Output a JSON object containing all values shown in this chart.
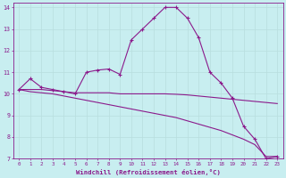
{
  "xlabel": "Windchill (Refroidissement éolien,°C)",
  "bg_color": "#c8eef0",
  "line_color": "#8b1a8b",
  "grid_color": "#b8dede",
  "xlim": [
    -0.5,
    23.5
  ],
  "ylim": [
    7,
    14.2
  ],
  "yticks": [
    7,
    8,
    9,
    10,
    11,
    12,
    13,
    14
  ],
  "xticks": [
    0,
    1,
    2,
    3,
    4,
    5,
    6,
    7,
    8,
    9,
    10,
    11,
    12,
    13,
    14,
    15,
    16,
    17,
    18,
    19,
    20,
    21,
    22,
    23
  ],
  "line1_x": [
    0,
    1,
    2,
    3,
    4,
    5,
    6,
    7,
    8,
    9,
    10,
    11,
    12,
    13,
    14,
    15,
    16,
    17,
    18,
    19,
    20,
    21,
    22,
    23
  ],
  "line1_y": [
    10.2,
    10.7,
    10.3,
    10.2,
    10.1,
    10.0,
    11.0,
    11.1,
    11.15,
    10.9,
    12.5,
    13.0,
    13.5,
    14.0,
    14.0,
    13.5,
    12.6,
    11.0,
    10.5,
    9.8,
    8.5,
    7.9,
    7.0,
    7.1
  ],
  "line2_x": [
    0,
    1,
    2,
    3,
    4,
    5,
    6,
    7,
    8,
    9,
    10,
    11,
    12,
    13,
    14,
    15,
    16,
    17,
    18,
    19,
    20,
    21,
    22,
    23
  ],
  "line2_y": [
    10.2,
    10.2,
    10.2,
    10.15,
    10.1,
    10.05,
    10.05,
    10.05,
    10.05,
    10.0,
    10.0,
    10.0,
    10.0,
    10.0,
    9.98,
    9.95,
    9.9,
    9.85,
    9.8,
    9.75,
    9.7,
    9.65,
    9.6,
    9.55
  ],
  "line3_x": [
    0,
    1,
    2,
    3,
    4,
    5,
    6,
    7,
    8,
    9,
    10,
    11,
    12,
    13,
    14,
    15,
    16,
    17,
    18,
    19,
    20,
    21,
    22,
    23
  ],
  "line3_y": [
    10.2,
    10.1,
    10.05,
    10.0,
    9.9,
    9.8,
    9.7,
    9.6,
    9.5,
    9.4,
    9.3,
    9.2,
    9.1,
    9.0,
    8.9,
    8.75,
    8.6,
    8.45,
    8.3,
    8.1,
    7.9,
    7.65,
    7.1,
    7.1
  ]
}
